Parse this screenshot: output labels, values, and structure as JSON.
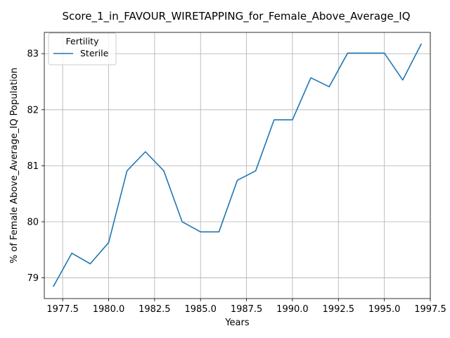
{
  "chart_data": {
    "type": "line",
    "title": "Score_1_in_FAVOUR_WIRETAPPING_for_Female_Above_Average_IQ",
    "xlabel": "Years",
    "ylabel": "% of Female Above_Average_IQ Population",
    "xlim": [
      1976.5,
      1997.5
    ],
    "ylim": [
      78.63,
      83.38
    ],
    "xticks": [
      1977.5,
      1980.0,
      1982.5,
      1985.0,
      1987.5,
      1990.0,
      1992.5,
      1995.0,
      1997.5
    ],
    "xtick_labels": [
      "1977.5",
      "1980.0",
      "1982.5",
      "1985.0",
      "1987.5",
      "1990.0",
      "1992.5",
      "1995.0",
      "1997.5"
    ],
    "yticks": [
      79,
      80,
      81,
      82,
      83
    ],
    "ytick_labels": [
      "79",
      "80",
      "81",
      "82",
      "83"
    ],
    "grid": true,
    "legend": {
      "title": "Fertility",
      "placement": "top-left"
    },
    "series": [
      {
        "name": "Sterile",
        "color": "#1f77b4",
        "x": [
          1977,
          1978,
          1979,
          1980,
          1981,
          1982,
          1983,
          1984,
          1985,
          1986,
          1987,
          1988,
          1989,
          1990,
          1991,
          1992,
          1993,
          1994,
          1995,
          1996,
          1997
        ],
        "y": [
          78.85,
          79.44,
          79.25,
          79.63,
          80.91,
          81.25,
          80.91,
          80.0,
          79.82,
          79.82,
          80.74,
          80.91,
          81.82,
          81.82,
          82.57,
          82.41,
          83.01,
          83.01,
          83.01,
          82.53,
          83.17
        ]
      }
    ]
  }
}
